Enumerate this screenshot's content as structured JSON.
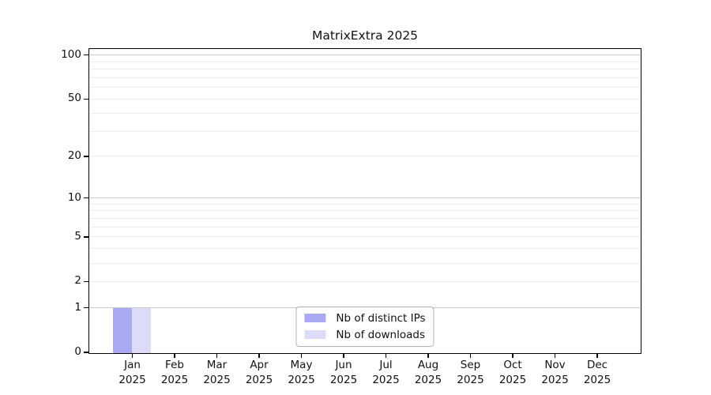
{
  "chart_data": {
    "type": "bar",
    "title": "MatrixExtra 2025",
    "categories": [
      {
        "month": "Jan",
        "year": "2025"
      },
      {
        "month": "Feb",
        "year": "2025"
      },
      {
        "month": "Mar",
        "year": "2025"
      },
      {
        "month": "Apr",
        "year": "2025"
      },
      {
        "month": "May",
        "year": "2025"
      },
      {
        "month": "Jun",
        "year": "2025"
      },
      {
        "month": "Jul",
        "year": "2025"
      },
      {
        "month": "Aug",
        "year": "2025"
      },
      {
        "month": "Sep",
        "year": "2025"
      },
      {
        "month": "Oct",
        "year": "2025"
      },
      {
        "month": "Nov",
        "year": "2025"
      },
      {
        "month": "Dec",
        "year": "2025"
      }
    ],
    "series": [
      {
        "name": "Nb of distinct IPs",
        "color": "#aaaaf4",
        "values": [
          1,
          0,
          0,
          0,
          0,
          0,
          0,
          0,
          0,
          0,
          0,
          0
        ]
      },
      {
        "name": "Nb of downloads",
        "color": "#dcdcf8",
        "values": [
          1,
          0,
          0,
          0,
          0,
          0,
          0,
          0,
          0,
          0,
          0,
          0
        ]
      }
    ],
    "y_axis": {
      "scale": "log10(1+value)",
      "ticks": [
        0,
        1,
        2,
        5,
        10,
        20,
        50,
        100
      ],
      "range": [
        0,
        110
      ],
      "decade_gridlines": [
        1,
        10,
        100
      ],
      "minor_gridlines": [
        2,
        3,
        4,
        5,
        6,
        7,
        8,
        9,
        20,
        30,
        40,
        50,
        60,
        70,
        80,
        90
      ]
    },
    "legend_position": "bottom-center",
    "grid": "horizontal",
    "colors": {
      "spine": "#000000",
      "decade_gridline": "#c9c9c9",
      "minor_gridline": "#ededed",
      "text": "#111111",
      "legend_border": "#b4b4b4"
    }
  }
}
